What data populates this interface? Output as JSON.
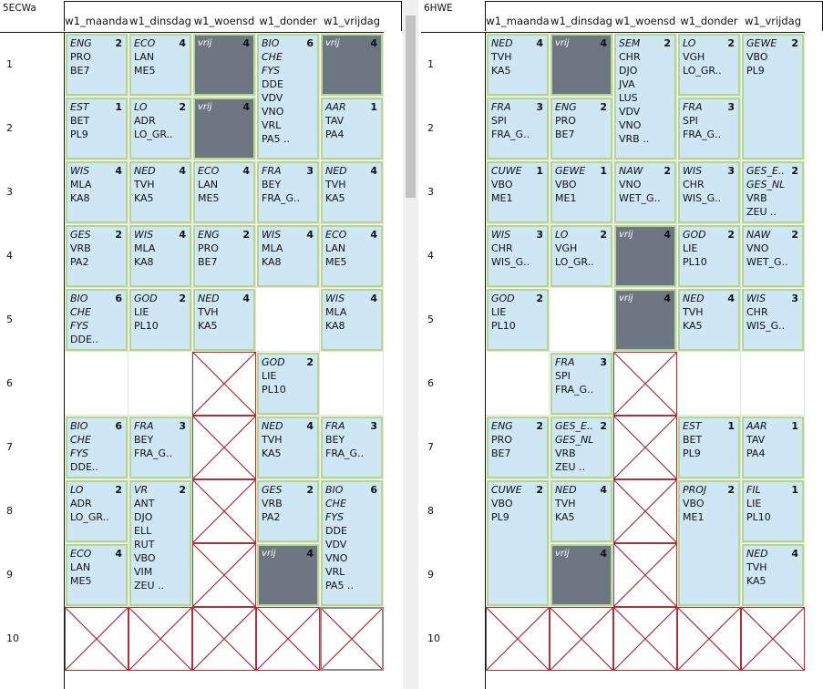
{
  "colors": {
    "lesson_fill": "#cfe6f5",
    "lesson_border": "#b2d98a",
    "free_fill": "#6e7683",
    "cross_border": "#a8343b"
  },
  "rows": [
    "1",
    "2",
    "3",
    "4",
    "5",
    "6",
    "7",
    "8",
    "9",
    "10"
  ],
  "panels": [
    {
      "title": "5ECWa",
      "columns": [
        "w1_maanda",
        "w1_dinsdag",
        "w1_woensd",
        "w1_donder",
        "w1_vrijdag"
      ],
      "lessons": [
        {
          "col": 0,
          "row": 0,
          "span": 1,
          "subject": "ENG",
          "hours": "2",
          "lines": [
            "PRO",
            "BE7"
          ]
        },
        {
          "col": 1,
          "row": 0,
          "span": 1,
          "subject": "ECO",
          "hours": "4",
          "lines": [
            "LAN",
            "ME5"
          ]
        },
        {
          "col": 2,
          "row": 0,
          "span": 1,
          "subject": "vrij",
          "hours": "4",
          "lines": [],
          "free": true
        },
        {
          "col": 3,
          "row": 0,
          "span": 2,
          "subject": "BIO",
          "hours": "6",
          "lines": [
            "CHE",
            "FYS",
            "DDE",
            "VDV",
            "VNO",
            "VRL",
            "PA5 .."
          ],
          "italicLines": 2
        },
        {
          "col": 4,
          "row": 0,
          "span": 1,
          "subject": "vrij",
          "hours": "4",
          "lines": [],
          "free": true
        },
        {
          "col": 0,
          "row": 1,
          "span": 1,
          "subject": "EST",
          "hours": "1",
          "lines": [
            "BET",
            "PL9"
          ]
        },
        {
          "col": 1,
          "row": 1,
          "span": 1,
          "subject": "LO",
          "hours": "2",
          "lines": [
            "ADR",
            "LO_GR.."
          ]
        },
        {
          "col": 2,
          "row": 1,
          "span": 1,
          "subject": "vrij",
          "hours": "4",
          "lines": [],
          "free": true
        },
        {
          "col": 4,
          "row": 1,
          "span": 1,
          "subject": "AAR",
          "hours": "1",
          "lines": [
            "TAV",
            "PA4"
          ]
        },
        {
          "col": 0,
          "row": 2,
          "span": 1,
          "subject": "WIS",
          "hours": "4",
          "lines": [
            "MLA",
            "KA8"
          ]
        },
        {
          "col": 1,
          "row": 2,
          "span": 1,
          "subject": "NED",
          "hours": "4",
          "lines": [
            "TVH",
            "KA5"
          ]
        },
        {
          "col": 2,
          "row": 2,
          "span": 1,
          "subject": "ECO",
          "hours": "4",
          "lines": [
            "LAN",
            "ME5"
          ]
        },
        {
          "col": 3,
          "row": 2,
          "span": 1,
          "subject": "FRA",
          "hours": "3",
          "lines": [
            "BEY",
            "FRA_G.."
          ]
        },
        {
          "col": 4,
          "row": 2,
          "span": 1,
          "subject": "NED",
          "hours": "4",
          "lines": [
            "TVH",
            "KA5"
          ]
        },
        {
          "col": 0,
          "row": 3,
          "span": 1,
          "subject": "GES",
          "hours": "2",
          "lines": [
            "VRB",
            "PA2"
          ]
        },
        {
          "col": 1,
          "row": 3,
          "span": 1,
          "subject": "WIS",
          "hours": "4",
          "lines": [
            "MLA",
            "KA8"
          ]
        },
        {
          "col": 2,
          "row": 3,
          "span": 1,
          "subject": "ENG",
          "hours": "2",
          "lines": [
            "PRO",
            "BE7"
          ]
        },
        {
          "col": 3,
          "row": 3,
          "span": 1,
          "subject": "WIS",
          "hours": "4",
          "lines": [
            "MLA",
            "KA8"
          ]
        },
        {
          "col": 4,
          "row": 3,
          "span": 1,
          "subject": "ECO",
          "hours": "4",
          "lines": [
            "LAN",
            "ME5"
          ]
        },
        {
          "col": 0,
          "row": 4,
          "span": 1,
          "subject": "BIO",
          "hours": "6",
          "lines": [
            "CHE",
            "FYS",
            "DDE.."
          ],
          "italicLines": 2
        },
        {
          "col": 1,
          "row": 4,
          "span": 1,
          "subject": "GOD",
          "hours": "2",
          "lines": [
            "LIE",
            "PL10"
          ]
        },
        {
          "col": 2,
          "row": 4,
          "span": 1,
          "subject": "NED",
          "hours": "4",
          "lines": [
            "TVH",
            "KA5"
          ]
        },
        {
          "col": 4,
          "row": 4,
          "span": 1,
          "subject": "WIS",
          "hours": "4",
          "lines": [
            "MLA",
            "KA8"
          ]
        },
        {
          "col": 3,
          "row": 5,
          "span": 1,
          "subject": "GOD",
          "hours": "2",
          "lines": [
            "LIE",
            "PL10"
          ]
        },
        {
          "col": 0,
          "row": 6,
          "span": 1,
          "subject": "BIO",
          "hours": "6",
          "lines": [
            "CHE",
            "FYS",
            "DDE.."
          ],
          "italicLines": 2
        },
        {
          "col": 1,
          "row": 6,
          "span": 1,
          "subject": "FRA",
          "hours": "3",
          "lines": [
            "BEY",
            "FRA_G.."
          ]
        },
        {
          "col": 3,
          "row": 6,
          "span": 1,
          "subject": "NED",
          "hours": "4",
          "lines": [
            "TVH",
            "KA5"
          ]
        },
        {
          "col": 4,
          "row": 6,
          "span": 1,
          "subject": "FRA",
          "hours": "3",
          "lines": [
            "BEY",
            "FRA_G.."
          ]
        },
        {
          "col": 0,
          "row": 7,
          "span": 1,
          "subject": "LO",
          "hours": "2",
          "lines": [
            "ADR",
            "LO_GR.."
          ]
        },
        {
          "col": 1,
          "row": 7,
          "span": 2,
          "subject": "VR",
          "hours": "2",
          "lines": [
            "ANT",
            "DJO",
            "ELL",
            "RUT",
            "VBO",
            "VIM",
            "ZEU .."
          ]
        },
        {
          "col": 3,
          "row": 7,
          "span": 1,
          "subject": "GES",
          "hours": "2",
          "lines": [
            "VRB",
            "PA2"
          ]
        },
        {
          "col": 4,
          "row": 7,
          "span": 2,
          "subject": "BIO",
          "hours": "6",
          "lines": [
            "CHE",
            "FYS",
            "DDE",
            "VDV",
            "VNO",
            "VRL",
            "PA5 .."
          ],
          "italicLines": 2
        },
        {
          "col": 0,
          "row": 8,
          "span": 1,
          "subject": "ECO",
          "hours": "4",
          "lines": [
            "LAN",
            "ME5"
          ]
        },
        {
          "col": 3,
          "row": 8,
          "span": 1,
          "subject": "vrij",
          "hours": "4",
          "lines": [],
          "free": true
        }
      ],
      "crosses": [
        {
          "col": 2,
          "row": 5,
          "span": 1
        },
        {
          "col": 2,
          "row": 6,
          "span": 1
        },
        {
          "col": 2,
          "row": 7,
          "span": 1
        },
        {
          "col": 2,
          "row": 8,
          "span": 1
        },
        {
          "col": 0,
          "row": 9,
          "span": 1
        },
        {
          "col": 1,
          "row": 9,
          "span": 1
        },
        {
          "col": 2,
          "row": 9,
          "span": 1
        },
        {
          "col": 3,
          "row": 9,
          "span": 1
        },
        {
          "col": 4,
          "row": 9,
          "span": 1,
          "selected": true
        }
      ]
    },
    {
      "title": "6HWE",
      "columns": [
        "w1_maanda",
        "w1_dinsdag",
        "w1_woensd",
        "w1_donder",
        "w1_vrijdag"
      ],
      "lessons": [
        {
          "col": 0,
          "row": 0,
          "span": 1,
          "subject": "NED",
          "hours": "4",
          "lines": [
            "TVH",
            "KA5"
          ]
        },
        {
          "col": 1,
          "row": 0,
          "span": 1,
          "subject": "vrij",
          "hours": "4",
          "lines": [],
          "free": true
        },
        {
          "col": 2,
          "row": 0,
          "span": 2,
          "subject": "SEM",
          "hours": "2",
          "lines": [
            "CHR",
            "DJO",
            "JVA",
            "LUS",
            "VDV",
            "VNO",
            "VRB .."
          ]
        },
        {
          "col": 3,
          "row": 0,
          "span": 1,
          "subject": "LO",
          "hours": "2",
          "lines": [
            "VGH",
            "LO_GR.."
          ]
        },
        {
          "col": 4,
          "row": 0,
          "span": 2,
          "subject": "GEWE",
          "hours": "2",
          "lines": [
            "VBO",
            "PL9"
          ]
        },
        {
          "col": 0,
          "row": 1,
          "span": 1,
          "subject": "FRA",
          "hours": "3",
          "lines": [
            "SPI",
            "FRA_G.."
          ]
        },
        {
          "col": 1,
          "row": 1,
          "span": 1,
          "subject": "ENG",
          "hours": "2",
          "lines": [
            "PRO",
            "BE7"
          ]
        },
        {
          "col": 3,
          "row": 1,
          "span": 1,
          "subject": "FRA",
          "hours": "3",
          "lines": [
            "SPI",
            "FRA_G.."
          ]
        },
        {
          "col": 0,
          "row": 2,
          "span": 1,
          "subject": "CUWE",
          "hours": "1",
          "lines": [
            "VBO",
            "ME1"
          ]
        },
        {
          "col": 1,
          "row": 2,
          "span": 1,
          "subject": "GEWE",
          "hours": "1",
          "lines": [
            "VBO",
            "ME1"
          ]
        },
        {
          "col": 2,
          "row": 2,
          "span": 1,
          "subject": "NAW",
          "hours": "2",
          "lines": [
            "VNO",
            "WET_G.."
          ]
        },
        {
          "col": 3,
          "row": 2,
          "span": 1,
          "subject": "WIS",
          "hours": "3",
          "lines": [
            "CHR",
            "WIS_G.."
          ]
        },
        {
          "col": 4,
          "row": 2,
          "span": 1,
          "subject": "GES_E..",
          "hours": "2",
          "lines": [
            "GES_NL",
            "VRB",
            "ZEU .."
          ],
          "italicLines": 1
        },
        {
          "col": 0,
          "row": 3,
          "span": 1,
          "subject": "WIS",
          "hours": "3",
          "lines": [
            "CHR",
            "WIS_G.."
          ]
        },
        {
          "col": 1,
          "row": 3,
          "span": 1,
          "subject": "LO",
          "hours": "2",
          "lines": [
            "VGH",
            "LO_GR.."
          ]
        },
        {
          "col": 2,
          "row": 3,
          "span": 1,
          "subject": "vrij",
          "hours": "4",
          "lines": [],
          "free": true
        },
        {
          "col": 3,
          "row": 3,
          "span": 1,
          "subject": "GOD",
          "hours": "2",
          "lines": [
            "LIE",
            "PL10"
          ]
        },
        {
          "col": 4,
          "row": 3,
          "span": 1,
          "subject": "NAW",
          "hours": "2",
          "lines": [
            "VNO",
            "WET_G.."
          ]
        },
        {
          "col": 0,
          "row": 4,
          "span": 1,
          "subject": "GOD",
          "hours": "2",
          "lines": [
            "LIE",
            "PL10"
          ]
        },
        {
          "col": 2,
          "row": 4,
          "span": 1,
          "subject": "vrij",
          "hours": "4",
          "lines": [],
          "free": true
        },
        {
          "col": 3,
          "row": 4,
          "span": 1,
          "subject": "NED",
          "hours": "4",
          "lines": [
            "TVH",
            "KA5"
          ]
        },
        {
          "col": 4,
          "row": 4,
          "span": 1,
          "subject": "WIS",
          "hours": "3",
          "lines": [
            "CHR",
            "WIS_G.."
          ]
        },
        {
          "col": 1,
          "row": 5,
          "span": 1,
          "subject": "FRA",
          "hours": "3",
          "lines": [
            "SPI",
            "FRA_G.."
          ]
        },
        {
          "col": 0,
          "row": 6,
          "span": 1,
          "subject": "ENG",
          "hours": "2",
          "lines": [
            "PRO",
            "BE7"
          ]
        },
        {
          "col": 1,
          "row": 6,
          "span": 1,
          "subject": "GES_E..",
          "hours": "2",
          "lines": [
            "GES_NL",
            "VRB",
            "ZEU .."
          ],
          "italicLines": 1
        },
        {
          "col": 3,
          "row": 6,
          "span": 1,
          "subject": "EST",
          "hours": "1",
          "lines": [
            "BET",
            "PL9"
          ]
        },
        {
          "col": 4,
          "row": 6,
          "span": 1,
          "subject": "AAR",
          "hours": "1",
          "lines": [
            "TAV",
            "PA4"
          ]
        },
        {
          "col": 0,
          "row": 7,
          "span": 2,
          "subject": "CUWE",
          "hours": "2",
          "lines": [
            "VBO",
            "PL9"
          ]
        },
        {
          "col": 1,
          "row": 7,
          "span": 1,
          "subject": "NED",
          "hours": "4",
          "lines": [
            "TVH",
            "KA5"
          ]
        },
        {
          "col": 3,
          "row": 7,
          "span": 2,
          "subject": "PROJ",
          "hours": "2",
          "lines": [
            "VBO",
            "ME1"
          ]
        },
        {
          "col": 4,
          "row": 7,
          "span": 1,
          "subject": "FIL",
          "hours": "1",
          "lines": [
            "LIE",
            "PL10"
          ]
        },
        {
          "col": 1,
          "row": 8,
          "span": 1,
          "subject": "vrij",
          "hours": "4",
          "lines": [],
          "free": true
        },
        {
          "col": 4,
          "row": 8,
          "span": 1,
          "subject": "NED",
          "hours": "4",
          "lines": [
            "TVH",
            "KA5"
          ]
        }
      ],
      "crosses": [
        {
          "col": 2,
          "row": 5,
          "span": 1
        },
        {
          "col": 2,
          "row": 6,
          "span": 1
        },
        {
          "col": 2,
          "row": 7,
          "span": 1
        },
        {
          "col": 2,
          "row": 8,
          "span": 1
        },
        {
          "col": 0,
          "row": 9,
          "span": 1
        },
        {
          "col": 1,
          "row": 9,
          "span": 1
        },
        {
          "col": 2,
          "row": 9,
          "span": 1
        },
        {
          "col": 3,
          "row": 9,
          "span": 1
        },
        {
          "col": 4,
          "row": 9,
          "span": 1
        }
      ]
    }
  ]
}
